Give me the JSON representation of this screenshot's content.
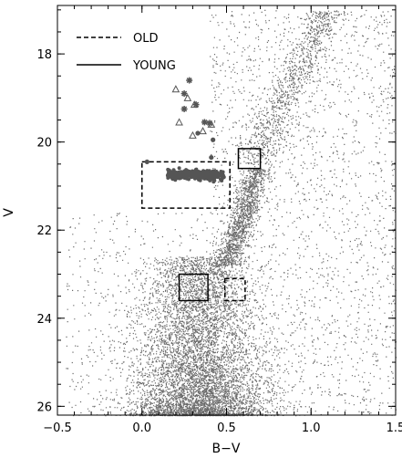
{
  "chart_data": {
    "type": "scatter",
    "title": "",
    "xlabel": "B−V",
    "ylabel": "V",
    "xlim": [
      -0.5,
      1.5
    ],
    "ylim": [
      26.2,
      16.9
    ],
    "y_inverted": true,
    "grid": false,
    "xticks": [
      -0.5,
      0.0,
      0.5,
      1.0,
      1.5
    ],
    "xtick_labels": [
      "−0.5",
      "0.0",
      "0.5",
      "1.0",
      "1.5"
    ],
    "yticks": [
      18,
      20,
      22,
      24,
      26
    ],
    "ytick_labels": [
      "18",
      "20",
      "22",
      "24",
      "26"
    ],
    "legend": {
      "placement": "top-left",
      "entries": [
        {
          "label": "OLD",
          "style": "dashed"
        },
        {
          "label": "YOUNG",
          "style": "solid"
        }
      ]
    },
    "colors": {
      "points": "#6b6b6b",
      "highlight": "#555555",
      "frame": "#000000"
    },
    "regions": [
      {
        "name": "OLD",
        "style": "dashed",
        "x": [
          0.0,
          0.52
        ],
        "y": [
          20.45,
          21.5
        ]
      },
      {
        "name": "YOUNG",
        "style": "solid",
        "x": [
          0.57,
          0.7
        ],
        "y": [
          20.15,
          20.6
        ]
      },
      {
        "name": "YOUNG",
        "style": "solid",
        "x": [
          0.22,
          0.39
        ],
        "y": [
          23.0,
          23.6
        ]
      },
      {
        "name": "OLD",
        "style": "dashed",
        "x": [
          0.49,
          0.61
        ],
        "y": [
          23.1,
          23.6
        ]
      }
    ],
    "series": [
      {
        "marker": "triangle",
        "points": [
          {
            "x": 0.2,
            "y": 18.8
          },
          {
            "x": 0.27,
            "y": 19.0
          },
          {
            "x": 0.31,
            "y": 19.15
          },
          {
            "x": 0.22,
            "y": 19.55
          },
          {
            "x": 0.3,
            "y": 19.85
          },
          {
            "x": 0.36,
            "y": 19.75
          },
          {
            "x": 0.41,
            "y": 19.6
          }
        ]
      },
      {
        "marker": "star",
        "points": [
          {
            "x": 0.28,
            "y": 18.6
          },
          {
            "x": 0.25,
            "y": 18.9
          },
          {
            "x": 0.32,
            "y": 19.15
          },
          {
            "x": 0.25,
            "y": 19.25
          },
          {
            "x": 0.37,
            "y": 19.55
          },
          {
            "x": 0.4,
            "y": 19.57
          }
        ]
      },
      {
        "marker": "filled-circle",
        "points": [
          {
            "x": 0.33,
            "y": 19.8
          },
          {
            "x": 0.42,
            "y": 19.95
          },
          {
            "x": 0.41,
            "y": 20.35
          },
          {
            "x": 0.03,
            "y": 20.45
          },
          {
            "x": 0.16,
            "y": 20.65
          },
          {
            "x": 0.22,
            "y": 20.72
          },
          {
            "x": 0.28,
            "y": 20.68
          },
          {
            "x": 0.34,
            "y": 20.75
          },
          {
            "x": 0.4,
            "y": 20.7
          },
          {
            "x": 0.45,
            "y": 20.78
          },
          {
            "x": 0.2,
            "y": 20.8
          },
          {
            "x": 0.37,
            "y": 20.82
          }
        ]
      }
    ]
  }
}
